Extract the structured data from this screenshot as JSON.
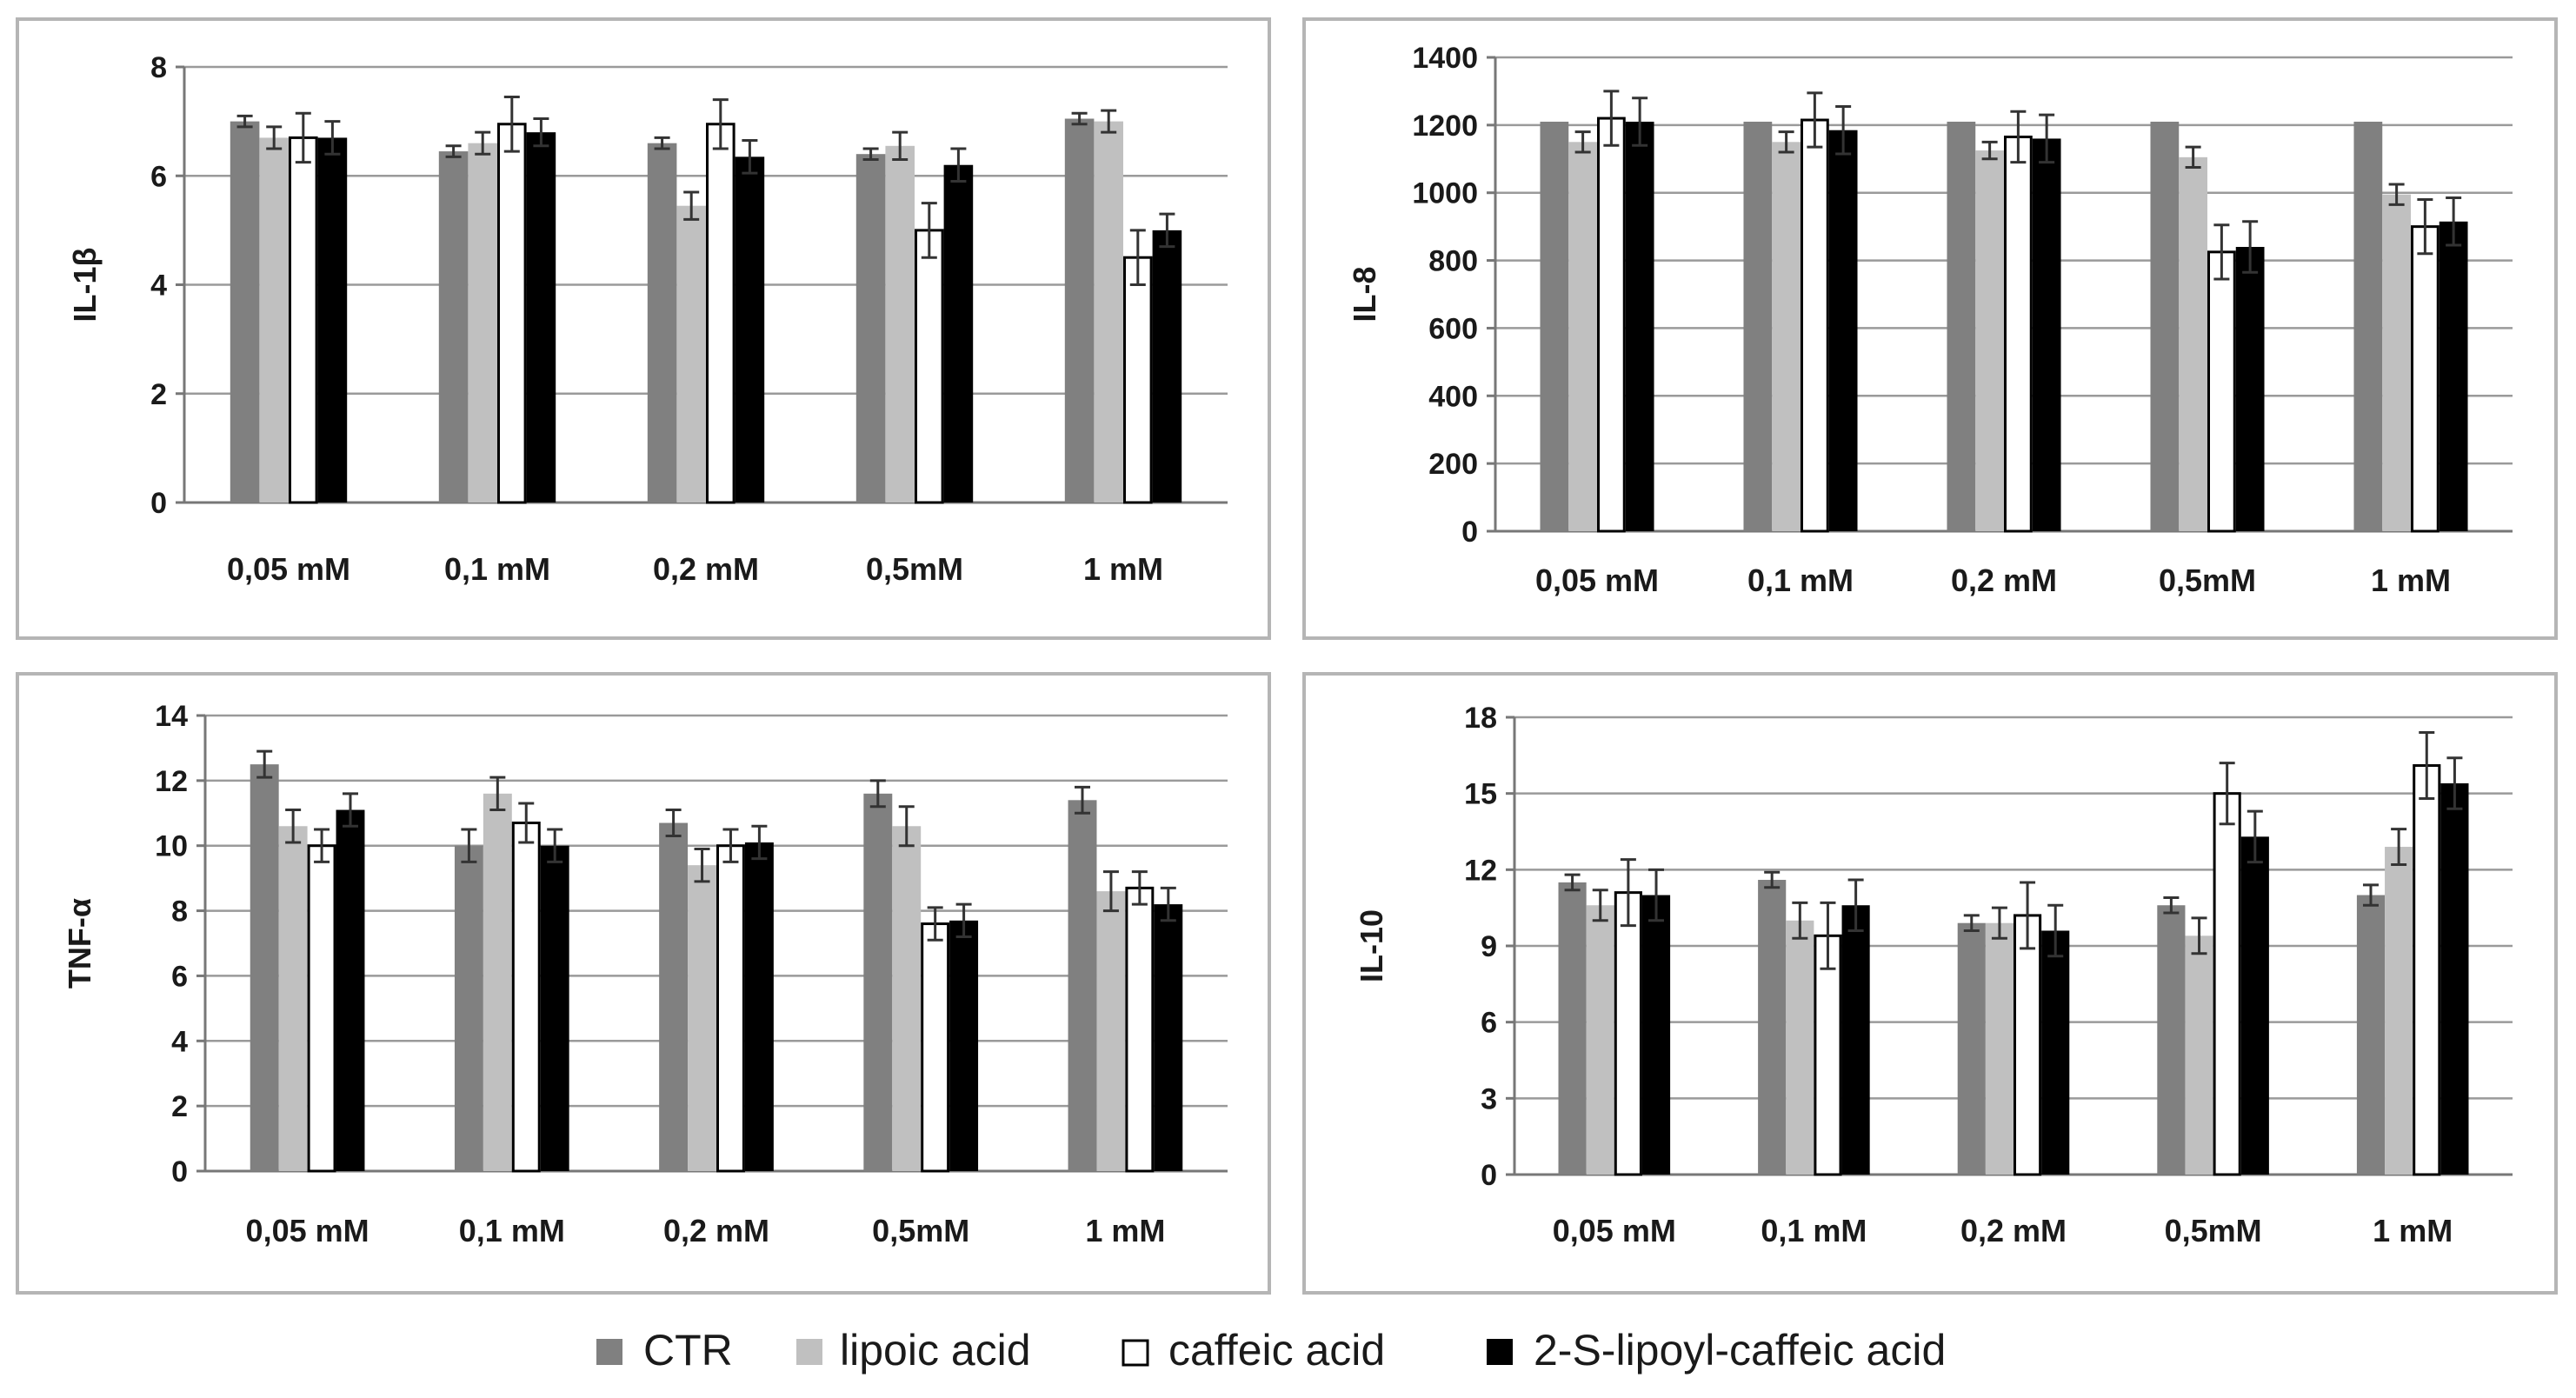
{
  "legend": [
    {
      "name": "CTR",
      "color": "#808080",
      "stroke": "#808080"
    },
    {
      "name": "lipoic acid",
      "color": "#c0c0c0",
      "stroke": "#c0c0c0"
    },
    {
      "name": "caffeic acid",
      "color": "#ffffff",
      "stroke": "#000000"
    },
    {
      "name": "2-S-lipoyl-caffeic acid",
      "color": "#000000",
      "stroke": "#000000"
    }
  ],
  "chart_data": [
    {
      "type": "bar",
      "title": "",
      "ylabel": "IL-1β",
      "xlabel": "",
      "categories": [
        "0,05 mM",
        "0,1 mM",
        "0,2 mM",
        "0,5mM",
        "1 mM"
      ],
      "ylim": [
        0,
        8
      ],
      "yticks": [
        "0",
        "2",
        "4",
        "6",
        "8"
      ],
      "ytick_values": [
        0,
        2,
        4,
        6,
        8
      ],
      "series": [
        {
          "name": "CTR",
          "values": [
            7.0,
            6.45,
            6.6,
            6.4,
            7.05
          ],
          "errors": [
            0.1,
            0.1,
            0.1,
            0.1,
            0.1
          ]
        },
        {
          "name": "lipoic acid",
          "values": [
            6.7,
            6.6,
            5.45,
            6.55,
            7.0
          ],
          "errors": [
            0.2,
            0.2,
            0.25,
            0.25,
            0.2
          ]
        },
        {
          "name": "caffeic acid",
          "values": [
            6.7,
            6.95,
            6.95,
            5.0,
            4.5
          ],
          "errors": [
            0.45,
            0.5,
            0.45,
            0.5,
            0.5
          ]
        },
        {
          "name": "2-S-lipoyl-caffeic acid",
          "values": [
            6.7,
            6.8,
            6.35,
            6.2,
            5.0
          ],
          "errors": [
            0.3,
            0.25,
            0.3,
            0.3,
            0.3
          ]
        }
      ]
    },
    {
      "type": "bar",
      "title": "",
      "ylabel": "IL-8",
      "xlabel": "",
      "categories": [
        "0,05 mM",
        "0,1 mM",
        "0,2 mM",
        "0,5mM",
        "1 mM"
      ],
      "ylim": [
        0,
        1400
      ],
      "yticks": [
        "0",
        "200",
        "400",
        "600",
        "800",
        "1000",
        "1200",
        "1400"
      ],
      "ytick_values": [
        0,
        200,
        400,
        600,
        800,
        1000,
        1200,
        1400
      ],
      "series": [
        {
          "name": "CTR",
          "values": [
            1210,
            1210,
            1210,
            1210,
            1210
          ],
          "errors": [
            0,
            0,
            0,
            0,
            0
          ]
        },
        {
          "name": "lipoic acid",
          "values": [
            1150,
            1150,
            1125,
            1105,
            995
          ],
          "errors": [
            30,
            30,
            25,
            30,
            30
          ]
        },
        {
          "name": "caffeic acid",
          "values": [
            1220,
            1215,
            1165,
            825,
            900
          ],
          "errors": [
            80,
            80,
            75,
            80,
            80
          ]
        },
        {
          "name": "2-S-lipoyl-caffeic acid",
          "values": [
            1210,
            1185,
            1160,
            840,
            915
          ],
          "errors": [
            70,
            70,
            70,
            75,
            70
          ]
        }
      ]
    },
    {
      "type": "bar",
      "title": "",
      "ylabel": "TNF-α",
      "xlabel": "",
      "categories": [
        "0,05 mM",
        "0,1 mM",
        "0,2 mM",
        "0,5mM",
        "1 mM"
      ],
      "ylim": [
        0,
        14
      ],
      "yticks": [
        "0",
        "2",
        "4",
        "6",
        "8",
        "10",
        "12",
        "14"
      ],
      "ytick_values": [
        0,
        2,
        4,
        6,
        8,
        10,
        12,
        14
      ],
      "series": [
        {
          "name": "CTR",
          "values": [
            12.5,
            10.0,
            10.7,
            11.6,
            11.4
          ],
          "errors": [
            0.4,
            0.5,
            0.4,
            0.4,
            0.4
          ]
        },
        {
          "name": "lipoic acid",
          "values": [
            10.6,
            11.6,
            9.4,
            10.6,
            8.6
          ],
          "errors": [
            0.5,
            0.5,
            0.5,
            0.6,
            0.6
          ]
        },
        {
          "name": "caffeic acid",
          "values": [
            10.0,
            10.7,
            10.0,
            7.6,
            8.7
          ],
          "errors": [
            0.5,
            0.6,
            0.5,
            0.5,
            0.5
          ]
        },
        {
          "name": "2-S-lipoyl-caffeic acid",
          "values": [
            11.1,
            10.0,
            10.1,
            7.7,
            8.2
          ],
          "errors": [
            0.5,
            0.5,
            0.5,
            0.5,
            0.5
          ]
        }
      ]
    },
    {
      "type": "bar",
      "title": "",
      "ylabel": "IL-10",
      "xlabel": "",
      "categories": [
        "0,05 mM",
        "0,1 mM",
        "0,2 mM",
        "0,5mM",
        "1 mM"
      ],
      "ylim": [
        0,
        18
      ],
      "yticks": [
        "0",
        "3",
        "6",
        "9",
        "12",
        "15",
        "18"
      ],
      "ytick_values": [
        0,
        3,
        6,
        9,
        12,
        15,
        18
      ],
      "series": [
        {
          "name": "CTR",
          "values": [
            11.5,
            11.6,
            9.9,
            10.6,
            11.0
          ],
          "errors": [
            0.3,
            0.3,
            0.3,
            0.3,
            0.4
          ]
        },
        {
          "name": "lipoic acid",
          "values": [
            10.6,
            10.0,
            9.9,
            9.4,
            12.9
          ],
          "errors": [
            0.6,
            0.7,
            0.6,
            0.7,
            0.7
          ]
        },
        {
          "name": "caffeic acid",
          "values": [
            11.1,
            9.4,
            10.2,
            15.0,
            16.1
          ],
          "errors": [
            1.3,
            1.3,
            1.3,
            1.2,
            1.3
          ]
        },
        {
          "name": "2-S-lipoyl-caffeic acid",
          "values": [
            11.0,
            10.6,
            9.6,
            13.3,
            15.4
          ],
          "errors": [
            1.0,
            1.0,
            1.0,
            1.0,
            1.0
          ]
        }
      ]
    }
  ]
}
